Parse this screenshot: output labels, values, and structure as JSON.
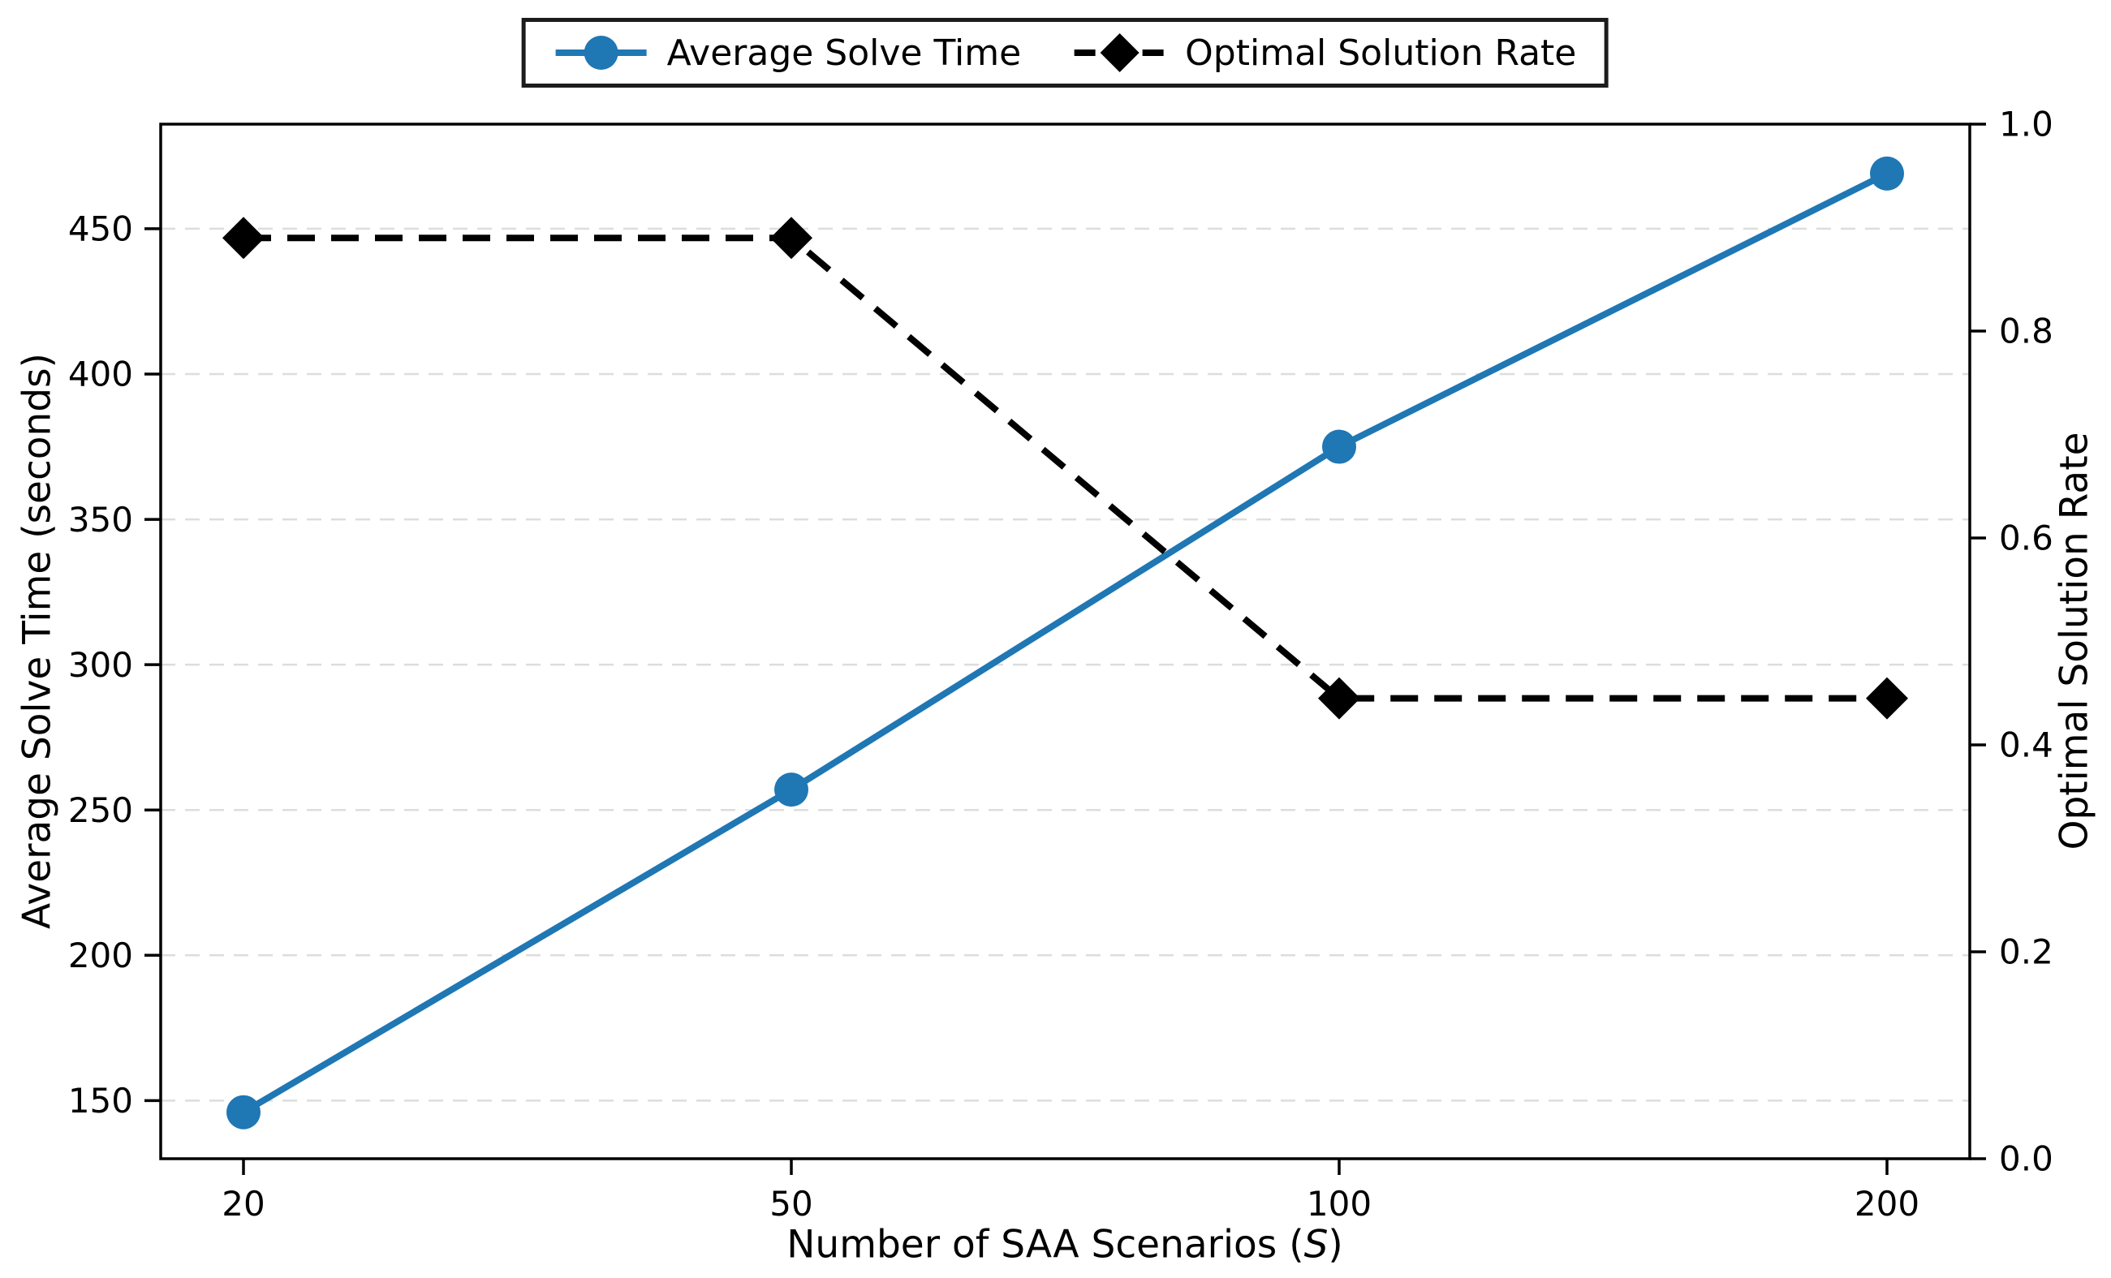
{
  "chart_data": {
    "type": "line",
    "title": "",
    "categories": [
      "20",
      "50",
      "100",
      "200"
    ],
    "series": [
      {
        "name": "Average Solve Time",
        "axis": "left",
        "values": [
          146,
          257,
          375,
          469
        ],
        "color": "#1f77b4",
        "line_style": "solid",
        "marker": "circle"
      },
      {
        "name": "Optimal Solution Rate",
        "axis": "right",
        "values": [
          0.89,
          0.89,
          0.445,
          0.445
        ],
        "color": "#000000",
        "line_style": "dashed",
        "marker": "diamond"
      }
    ],
    "xlabel": "Number of SAA Scenarios (S)",
    "xlabel_parts": {
      "pre": "Number of SAA Scenarios (",
      "var": "S",
      "post": ")"
    },
    "ylabel_left": "Average Solve Time (seconds)",
    "ylabel_right": "Optimal Solution Rate",
    "left_ticks": [
      150,
      200,
      250,
      300,
      350,
      400,
      450
    ],
    "right_ticks": [
      0.0,
      0.2,
      0.4,
      0.6,
      0.8,
      1.0
    ],
    "right_tick_labels": [
      "0.0",
      "0.2",
      "0.4",
      "0.6",
      "0.8",
      "1.0"
    ],
    "ylim_left": [
      130,
      486
    ],
    "ylim_right": [
      0.0,
      1.0
    ],
    "grid": "horizontal-dashed",
    "legend_position": "top-center-outside",
    "legend": [
      "Average Solve Time",
      "Optimal Solution Rate"
    ]
  },
  "colors": {
    "blue_series": "#1f77b4",
    "black_series": "#000000",
    "grid": "#dddddd",
    "spine": "#000000",
    "legend_border": "#1c1c1c",
    "background": "#ffffff",
    "text": "#000000"
  }
}
